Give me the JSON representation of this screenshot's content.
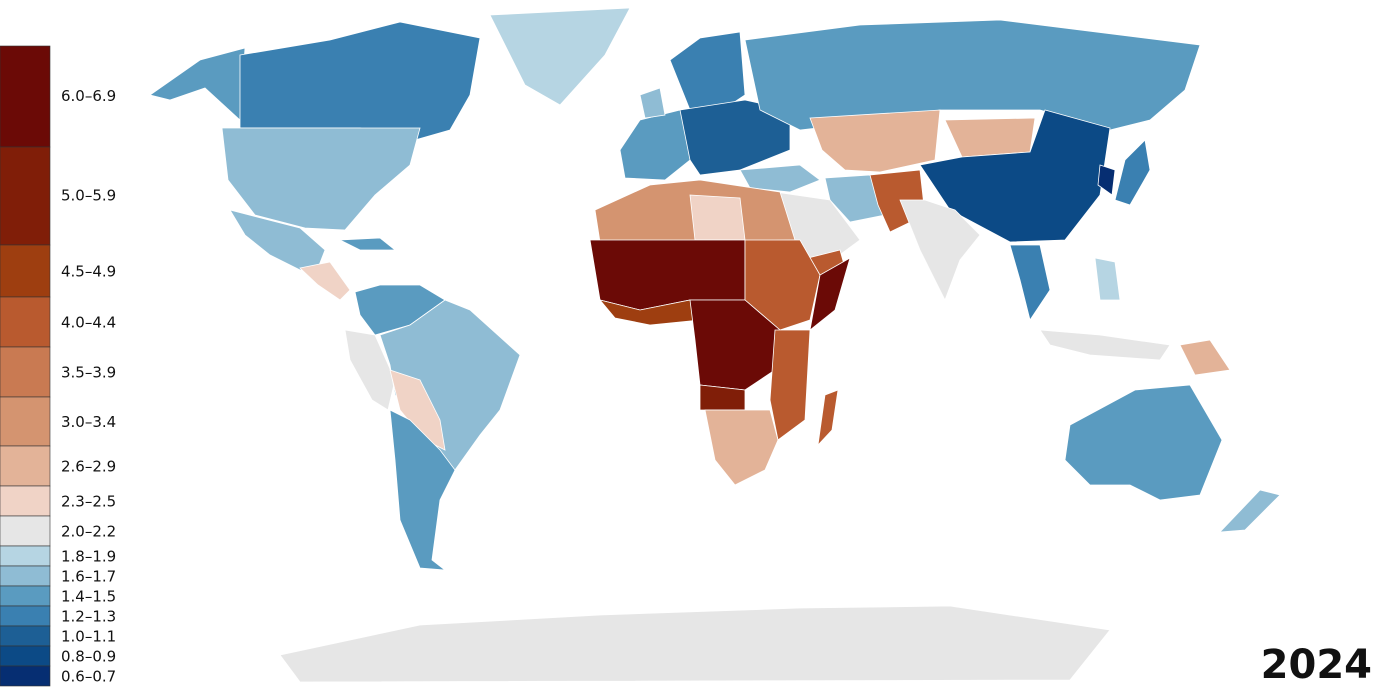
{
  "legend": {
    "items": [
      {
        "label": "6.0–6.9",
        "color": "#6b0a06"
      },
      {
        "label": "5.0–5.9",
        "color": "#801e08"
      },
      {
        "label": "4.5–4.9",
        "color": "#9e3e10"
      },
      {
        "label": "4.0–4.4",
        "color": "#b95a2f"
      },
      {
        "label": "3.5–3.9",
        "color": "#c97a52"
      },
      {
        "label": "3.0–3.4",
        "color": "#d49470"
      },
      {
        "label": "2.6–2.9",
        "color": "#e3b398"
      },
      {
        "label": "2.3–2.5",
        "color": "#f0d3c6"
      },
      {
        "label": "2.0–2.2",
        "color": "#e6e6e6"
      },
      {
        "label": "1.8–1.9",
        "color": "#b6d5e3"
      },
      {
        "label": "1.6–1.7",
        "color": "#8fbcd4"
      },
      {
        "label": "1.4–1.5",
        "color": "#5a9bc0"
      },
      {
        "label": "1.2–1.3",
        "color": "#3a80b1"
      },
      {
        "label": "1.0–1.1",
        "color": "#1d5f95"
      },
      {
        "label": "0.8–0.9",
        "color": "#0c4a86"
      },
      {
        "label": "0.6–0.7",
        "color": "#062e72"
      }
    ]
  },
  "year": "2024"
}
